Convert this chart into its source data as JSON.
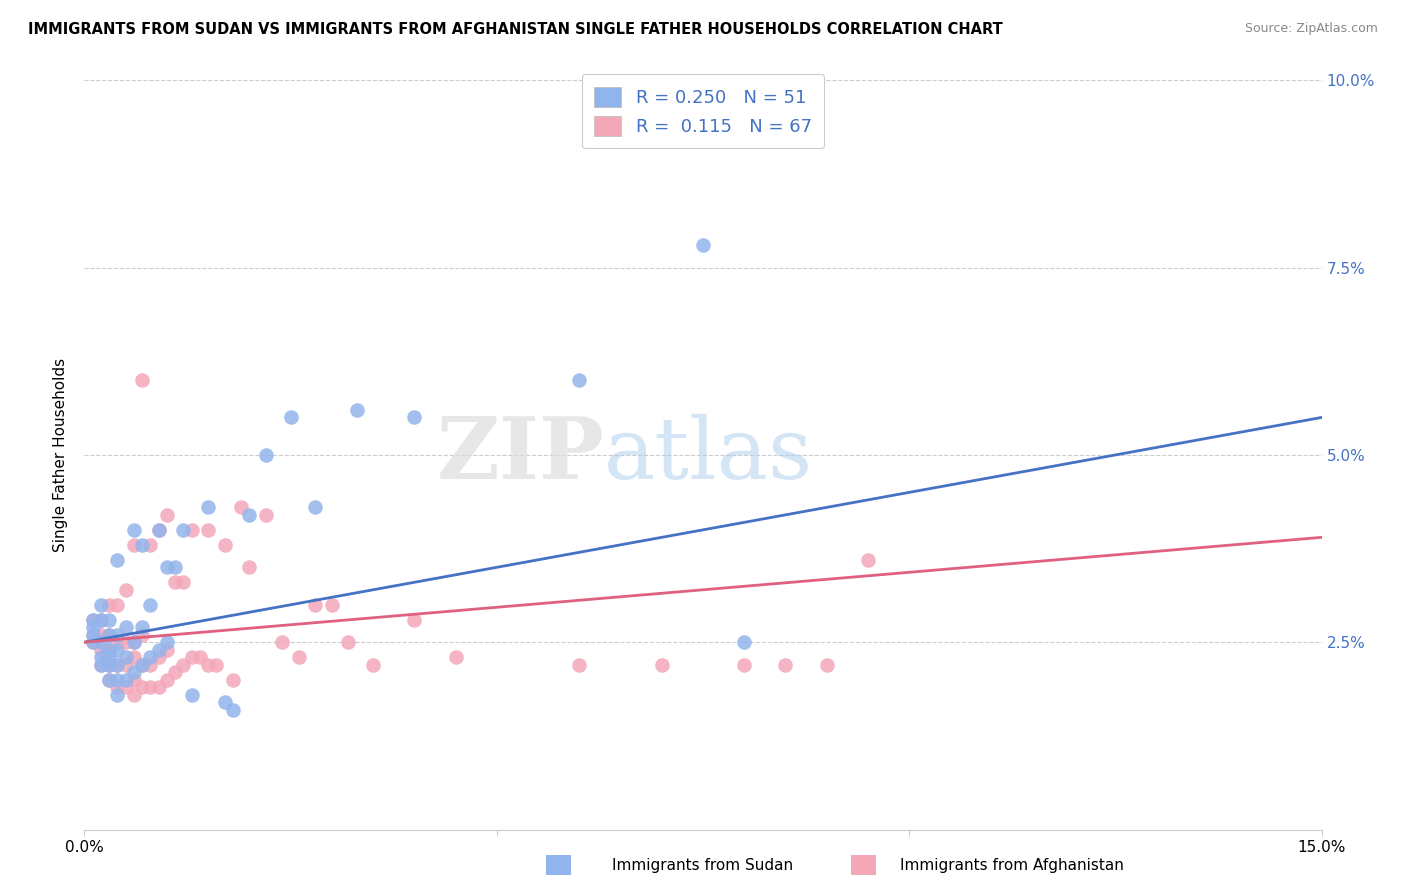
{
  "title": "IMMIGRANTS FROM SUDAN VS IMMIGRANTS FROM AFGHANISTAN SINGLE FATHER HOUSEHOLDS CORRELATION CHART",
  "source": "Source: ZipAtlas.com",
  "ylabel": "Single Father Households",
  "xlim": [
    0.0,
    0.15
  ],
  "ylim": [
    0.0,
    0.1
  ],
  "xticks": [
    0.0,
    0.05,
    0.1,
    0.15
  ],
  "xtick_labels": [
    "0.0%",
    "",
    "",
    ""
  ],
  "yticks_right": [
    0.025,
    0.05,
    0.075,
    0.1
  ],
  "ytick_labels_right": [
    "2.5%",
    "5.0%",
    "7.5%",
    "10.0%"
  ],
  "sudan_color": "#92B4EC",
  "afghanistan_color": "#F4A7B9",
  "sudan_line_color": "#4472C4",
  "afghanistan_line_color": "#E06080",
  "sudan_R": 0.25,
  "sudan_N": 51,
  "afghanistan_R": 0.115,
  "afghanistan_N": 67,
  "watermark_zip": "ZIP",
  "watermark_atlas": "atlas",
  "sudan_x": [
    0.001,
    0.001,
    0.001,
    0.001,
    0.002,
    0.002,
    0.002,
    0.002,
    0.002,
    0.003,
    0.003,
    0.003,
    0.003,
    0.003,
    0.003,
    0.004,
    0.004,
    0.004,
    0.004,
    0.004,
    0.004,
    0.005,
    0.005,
    0.005,
    0.006,
    0.006,
    0.006,
    0.007,
    0.007,
    0.007,
    0.008,
    0.008,
    0.009,
    0.009,
    0.01,
    0.01,
    0.011,
    0.012,
    0.013,
    0.015,
    0.017,
    0.018,
    0.02,
    0.022,
    0.025,
    0.028,
    0.033,
    0.04,
    0.06,
    0.075,
    0.08
  ],
  "sudan_y": [
    0.025,
    0.026,
    0.027,
    0.028,
    0.022,
    0.023,
    0.025,
    0.028,
    0.03,
    0.02,
    0.022,
    0.023,
    0.024,
    0.026,
    0.028,
    0.018,
    0.02,
    0.022,
    0.024,
    0.026,
    0.036,
    0.02,
    0.023,
    0.027,
    0.021,
    0.025,
    0.04,
    0.022,
    0.027,
    0.038,
    0.023,
    0.03,
    0.024,
    0.04,
    0.025,
    0.035,
    0.035,
    0.04,
    0.018,
    0.043,
    0.017,
    0.016,
    0.042,
    0.05,
    0.055,
    0.043,
    0.056,
    0.055,
    0.06,
    0.078,
    0.025
  ],
  "afghanistan_x": [
    0.001,
    0.001,
    0.001,
    0.002,
    0.002,
    0.002,
    0.002,
    0.003,
    0.003,
    0.003,
    0.003,
    0.003,
    0.004,
    0.004,
    0.004,
    0.004,
    0.005,
    0.005,
    0.005,
    0.005,
    0.006,
    0.006,
    0.006,
    0.006,
    0.006,
    0.007,
    0.007,
    0.007,
    0.007,
    0.008,
    0.008,
    0.008,
    0.009,
    0.009,
    0.009,
    0.01,
    0.01,
    0.01,
    0.011,
    0.011,
    0.012,
    0.012,
    0.013,
    0.013,
    0.014,
    0.015,
    0.015,
    0.016,
    0.017,
    0.018,
    0.019,
    0.02,
    0.022,
    0.024,
    0.026,
    0.028,
    0.03,
    0.032,
    0.035,
    0.04,
    0.045,
    0.06,
    0.07,
    0.08,
    0.085,
    0.09,
    0.095
  ],
  "afghanistan_y": [
    0.025,
    0.026,
    0.028,
    0.022,
    0.024,
    0.026,
    0.028,
    0.02,
    0.022,
    0.024,
    0.026,
    0.03,
    0.019,
    0.022,
    0.025,
    0.03,
    0.019,
    0.022,
    0.025,
    0.032,
    0.018,
    0.02,
    0.023,
    0.025,
    0.038,
    0.019,
    0.022,
    0.026,
    0.06,
    0.019,
    0.022,
    0.038,
    0.019,
    0.023,
    0.04,
    0.02,
    0.024,
    0.042,
    0.021,
    0.033,
    0.022,
    0.033,
    0.023,
    0.04,
    0.023,
    0.022,
    0.04,
    0.022,
    0.038,
    0.02,
    0.043,
    0.035,
    0.042,
    0.025,
    0.023,
    0.03,
    0.03,
    0.025,
    0.022,
    0.028,
    0.023,
    0.022,
    0.022,
    0.022,
    0.022,
    0.022,
    0.036
  ],
  "sudan_line_x": [
    0.0,
    0.15
  ],
  "sudan_line_y": [
    0.025,
    0.055
  ],
  "afghanistan_line_x": [
    0.0,
    0.15
  ],
  "afghanistan_line_y": [
    0.025,
    0.039
  ]
}
